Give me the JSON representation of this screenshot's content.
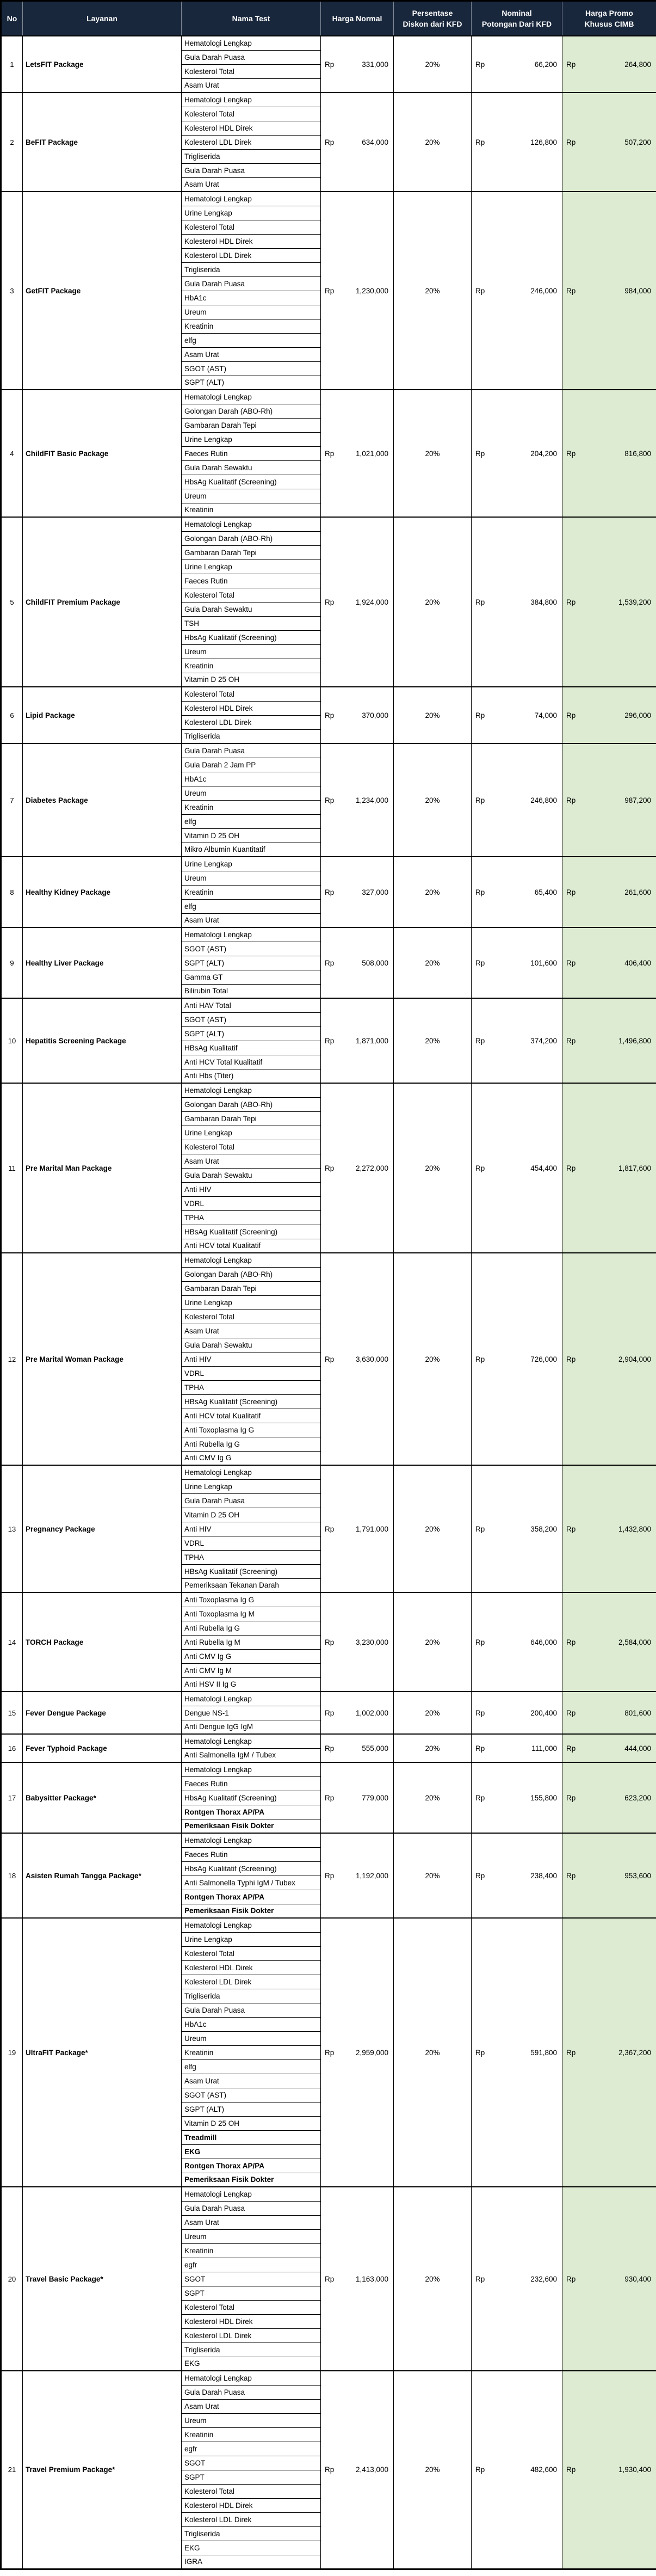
{
  "table": {
    "columns": [
      "No",
      "Layanan",
      "Nama Test",
      "Harga Normal",
      "Persentase\nDiskon dari KFD",
      "Nominal\nPotongan Dari KFD",
      "Harga Promo\nKhusus CIMB"
    ]
  },
  "currency": "Rp",
  "colors": {
    "header_bg": "#18273c",
    "header_text": "#ffffff",
    "promo_col_bg": "#dcebd1",
    "grid": "#000000"
  },
  "packages": [
    {
      "no": "1",
      "name": "LetsFIT Package",
      "harga_normal": "331,000",
      "diskon": "20%",
      "potongan": "66,200",
      "harga_promo": "264,800",
      "tests": [
        "Hematologi Lengkap",
        "Gula Darah Puasa",
        "Kolesterol Total",
        "Asam Urat"
      ]
    },
    {
      "no": "2",
      "name": "BeFIT Package",
      "harga_normal": "634,000",
      "diskon": "20%",
      "potongan": "126,800",
      "harga_promo": "507,200",
      "tests": [
        "Hematologi Lengkap",
        "Kolesterol Total",
        "Kolesterol HDL Direk",
        "Kolesterol LDL Direk",
        "Trigliserida",
        "Gula Darah Puasa",
        "Asam Urat"
      ]
    },
    {
      "no": "3",
      "name": "GetFIT Package",
      "harga_normal": "1,230,000",
      "diskon": "20%",
      "potongan": "246,000",
      "harga_promo": "984,000",
      "tests": [
        "Hematologi Lengkap",
        "Urine Lengkap",
        "Kolesterol Total",
        "Kolesterol HDL Direk",
        "Kolesterol LDL Direk",
        "Trigliserida",
        "Gula Darah Puasa",
        "HbA1c",
        "Ureum",
        "Kreatinin",
        "elfg",
        "Asam Urat",
        "SGOT (AST)",
        "SGPT (ALT)"
      ]
    },
    {
      "no": "4",
      "name": "ChildFIT Basic Package",
      "harga_normal": "1,021,000",
      "diskon": "20%",
      "potongan": "204,200",
      "harga_promo": "816,800",
      "tests": [
        "Hematologi Lengkap",
        "Golongan Darah (ABO-Rh)",
        "Gambaran Darah Tepi",
        "Urine Lengkap",
        "Faeces Rutin",
        "Gula Darah Sewaktu",
        "HbsAg Kualitatif (Screening)",
        "Ureum",
        "Kreatinin"
      ]
    },
    {
      "no": "5",
      "name": "ChildFIT Premium Package",
      "harga_normal": "1,924,000",
      "diskon": "20%",
      "potongan": "384,800",
      "harga_promo": "1,539,200",
      "tests": [
        "Hematologi Lengkap",
        "Golongan Darah (ABO-Rh)",
        "Gambaran Darah Tepi",
        "Urine Lengkap",
        "Faeces Rutin",
        "Kolesterol Total",
        "Gula Darah Sewaktu",
        "TSH",
        "HbsAg Kualitatif (Screening)",
        "Ureum",
        "Kreatinin",
        "Vitamin D 25 OH"
      ]
    },
    {
      "no": "6",
      "name": "Lipid Package",
      "harga_normal": "370,000",
      "diskon": "20%",
      "potongan": "74,000",
      "harga_promo": "296,000",
      "tests": [
        "Kolesterol Total",
        "Kolesterol HDL Direk",
        "Kolesterol LDL Direk",
        "Trigliserida"
      ]
    },
    {
      "no": "7",
      "name": "Diabetes Package",
      "harga_normal": "1,234,000",
      "diskon": "20%",
      "potongan": "246,800",
      "harga_promo": "987,200",
      "tests": [
        "Gula Darah Puasa",
        "Gula Darah 2 Jam PP",
        "HbA1c",
        "Ureum",
        "Kreatinin",
        "elfg",
        "Vitamin D 25 OH",
        "Mikro Albumin Kuantitatif"
      ]
    },
    {
      "no": "8",
      "name": "Healthy Kidney Package",
      "harga_normal": "327,000",
      "diskon": "20%",
      "potongan": "65,400",
      "harga_promo": "261,600",
      "tests": [
        "Urine Lengkap",
        "Ureum",
        "Kreatinin",
        "elfg",
        "Asam Urat"
      ]
    },
    {
      "no": "9",
      "name": "Healthy Liver Package",
      "harga_normal": "508,000",
      "diskon": "20%",
      "potongan": "101,600",
      "harga_promo": "406,400",
      "tests": [
        "Hematologi Lengkap",
        "SGOT (AST)",
        "SGPT (ALT)",
        "Gamma GT",
        "Bilirubin Total"
      ]
    },
    {
      "no": "10",
      "name": "Hepatitis Screening Package",
      "harga_normal": "1,871,000",
      "diskon": "20%",
      "potongan": "374,200",
      "harga_promo": "1,496,800",
      "tests": [
        "Anti HAV Total",
        "SGOT (AST)",
        "SGPT (ALT)",
        "HBsAg Kualitatif",
        "Anti HCV Total Kualitatif",
        "Anti Hbs (Titer)"
      ]
    },
    {
      "no": "11",
      "name": "Pre Marital Man Package",
      "harga_normal": "2,272,000",
      "diskon": "20%",
      "potongan": "454,400",
      "harga_promo": "1,817,600",
      "tests": [
        "Hematologi Lengkap",
        "Golongan Darah (ABO-Rh)",
        "Gambaran Darah Tepi",
        "Urine Lengkap",
        "Kolesterol Total",
        "Asam Urat",
        "Gula Darah Sewaktu",
        "Anti HIV",
        "VDRL",
        "TPHA",
        "HBsAg Kualitatif (Screening)",
        "Anti HCV total Kualitatif"
      ]
    },
    {
      "no": "12",
      "name": "Pre Marital Woman Package",
      "harga_normal": "3,630,000",
      "diskon": "20%",
      "potongan": "726,000",
      "harga_promo": "2,904,000",
      "tests": [
        "Hematologi Lengkap",
        "Golongan Darah (ABO-Rh)",
        "Gambaran Darah Tepi",
        "Urine Lengkap",
        "Kolesterol Total",
        "Asam Urat",
        "Gula Darah Sewaktu",
        "Anti HIV",
        "VDRL",
        "TPHA",
        "HBsAg Kualitatif (Screening)",
        "Anti HCV total Kualitatif",
        "Anti Toxoplasma Ig G",
        "Anti Rubella Ig G",
        "Anti CMV Ig G"
      ]
    },
    {
      "no": "13",
      "name": "Pregnancy Package",
      "harga_normal": "1,791,000",
      "diskon": "20%",
      "potongan": "358,200",
      "harga_promo": "1,432,800",
      "tests": [
        "Hematologi Lengkap",
        "Urine Lengkap",
        "Gula Darah Puasa",
        "Vitamin D 25 OH",
        "Anti HIV",
        "VDRL",
        "TPHA",
        "HBsAg Kualitatif (Screening)",
        "Pemeriksaan Tekanan Darah"
      ]
    },
    {
      "no": "14",
      "name": "TORCH Package",
      "harga_normal": "3,230,000",
      "diskon": "20%",
      "potongan": "646,000",
      "harga_promo": "2,584,000",
      "tests": [
        "Anti Toxoplasma Ig G",
        "Anti Toxoplasma Ig M",
        "Anti Rubella Ig G",
        "Anti Rubella Ig M",
        "Anti CMV Ig G",
        "Anti CMV Ig M",
        "Anti HSV II Ig G"
      ]
    },
    {
      "no": "15",
      "name": "Fever Dengue Package",
      "harga_normal": "1,002,000",
      "diskon": "20%",
      "potongan": "200,400",
      "harga_promo": "801,600",
      "tests": [
        "Hematologi Lengkap",
        "Dengue NS-1",
        "Anti Dengue IgG IgM"
      ]
    },
    {
      "no": "16",
      "name": "Fever Typhoid Package",
      "harga_normal": "555,000",
      "diskon": "20%",
      "potongan": "111,000",
      "harga_promo": "444,000",
      "tests": [
        "Hematologi Lengkap",
        "Anti Salmonella IgM / Tubex"
      ]
    },
    {
      "no": "17",
      "name": "Babysitter Package*",
      "harga_normal": "779,000",
      "diskon": "20%",
      "potongan": "155,800",
      "harga_promo": "623,200",
      "tests": [
        "Hematologi Lengkap",
        "Faeces Rutin",
        "HbsAg Kualitatif (Screening)",
        {
          "name": "Rontgen Thorax AP/PA",
          "bold": true
        },
        {
          "name": "Pemeriksaan Fisik Dokter",
          "bold": true
        }
      ]
    },
    {
      "no": "18",
      "name": "Asisten Rumah Tangga Package*",
      "harga_normal": "1,192,000",
      "diskon": "20%",
      "potongan": "238,400",
      "harga_promo": "953,600",
      "tests": [
        "Hematologi Lengkap",
        "Faeces Rutin",
        "HbsAg Kualitatif (Screening)",
        "Anti Salmonella Typhi IgM / Tubex",
        {
          "name": "Rontgen Thorax AP/PA",
          "bold": true
        },
        {
          "name": "Pemeriksaan Fisik Dokter",
          "bold": true
        }
      ]
    },
    {
      "no": "19",
      "name": "UltraFIT Package*",
      "harga_normal": "2,959,000",
      "diskon": "20%",
      "potongan": "591,800",
      "harga_promo": "2,367,200",
      "tests": [
        "Hematologi Lengkap",
        "Urine Lengkap",
        "Kolesterol Total",
        "Kolesterol HDL Direk",
        "Kolesterol LDL Direk",
        "Trigliserida",
        "Gula Darah Puasa",
        "HbA1c",
        "Ureum",
        "Kreatinin",
        "elfg",
        "Asam Urat",
        "SGOT (AST)",
        "SGPT (ALT)",
        "Vitamin D 25 OH",
        {
          "name": "Treadmill",
          "bold": true
        },
        {
          "name": "EKG",
          "bold": true
        },
        {
          "name": "Rontgen Thorax AP/PA",
          "bold": true
        },
        {
          "name": "Pemeriksaan Fisik Dokter",
          "bold": true
        }
      ]
    },
    {
      "no": "20",
      "name": "Travel Basic Package*",
      "harga_normal": "1,163,000",
      "diskon": "20%",
      "potongan": "232,600",
      "harga_promo": "930,400",
      "tests": [
        "Hematologi Lengkap",
        "Gula Darah Puasa",
        "Asam Urat",
        "Ureum",
        "Kreatinin",
        "egfr",
        "SGOT",
        "SGPT",
        "Kolesterol Total",
        "Kolesterol HDL Direk",
        "Kolesterol LDL Direk",
        "Trigliserida",
        "EKG"
      ]
    },
    {
      "no": "21",
      "name": "Travel Premium Package*",
      "harga_normal": "2,413,000",
      "diskon": "20%",
      "potongan": "482,600",
      "harga_promo": "1,930,400",
      "tests": [
        "Hematologi Lengkap",
        "Gula Darah Puasa",
        "Asam Urat",
        "Ureum",
        "Kreatinin",
        "egfr",
        "SGOT",
        "SGPT",
        "Kolesterol Total",
        "Kolesterol HDL Direk",
        "Kolesterol LDL Direk",
        "Trigliserida",
        "EKG",
        "IGRA"
      ]
    }
  ]
}
